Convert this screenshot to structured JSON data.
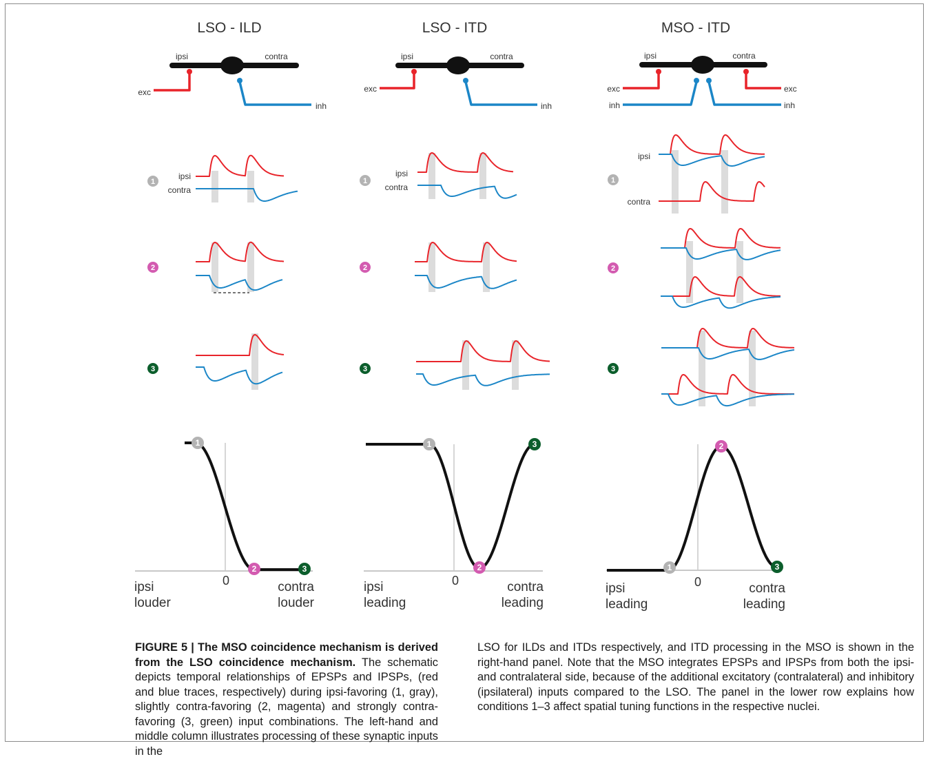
{
  "colors": {
    "exc": "#e8242a",
    "inh": "#1b86c7",
    "cell": "#111111",
    "cond1": "#b3b3b3",
    "cond2": "#d35bb0",
    "cond3": "#0c5e2c",
    "shade": "#dcdcdc"
  },
  "panels": [
    {
      "title": "LSO - ILD",
      "ipsi": "ipsi",
      "contra": "contra",
      "exc": "exc",
      "inh": "inh",
      "axis_zero": "0",
      "axis_left": [
        "ipsi",
        "louder"
      ],
      "axis_right": [
        "contra",
        "louder"
      ]
    },
    {
      "title": "LSO - ITD",
      "ipsi": "ipsi",
      "contra": "contra",
      "exc": "exc",
      "inh": "inh",
      "axis_zero": "0",
      "axis_left": [
        "ipsi",
        "leading"
      ],
      "axis_right": [
        "contra",
        "leading"
      ]
    },
    {
      "title": "MSO - ITD",
      "ipsi": "ipsi",
      "contra": "contra",
      "exc_left": "exc",
      "exc_right": "exc",
      "inh_left": "inh",
      "inh_right": "inh",
      "axis_zero": "0",
      "axis_left": [
        "ipsi",
        "leading"
      ],
      "axis_right": [
        "contra",
        "leading"
      ]
    }
  ],
  "trace_labels": {
    "ipsi": "ipsi",
    "contra": "contra"
  },
  "conditions": [
    {
      "num": "1",
      "color": "#b3b3b3"
    },
    {
      "num": "2",
      "color": "#d35bb0"
    },
    {
      "num": "3",
      "color": "#0c5e2c"
    }
  ],
  "caption": {
    "bold": "FIGURE 5 | The MSO coincidence mechanism is derived from the LSO coincidence mechanism.",
    "left": " The schematic depicts temporal relationships of EPSPs and IPSPs, (red and blue traces, respectively) during ipsi-favoring (1, gray), slightly contra-favoring (2, magenta) and strongly contra-favoring (3, green) input combinations. The left-hand and middle column illustrates processing of these synaptic inputs in the",
    "right": "LSO for ILDs and ITDs respectively, and ITD processing in the MSO is shown in the right-hand panel. Note that the MSO integrates EPSPs and IPSPs from both the ipsi- and contralateral side, because of the additional excitatory (contralateral) and inhibitory (ipsilateral) inputs compared to the LSO. The panel in the lower row explains how conditions 1–3 affect spatial tuning functions in the respective nuclei."
  }
}
